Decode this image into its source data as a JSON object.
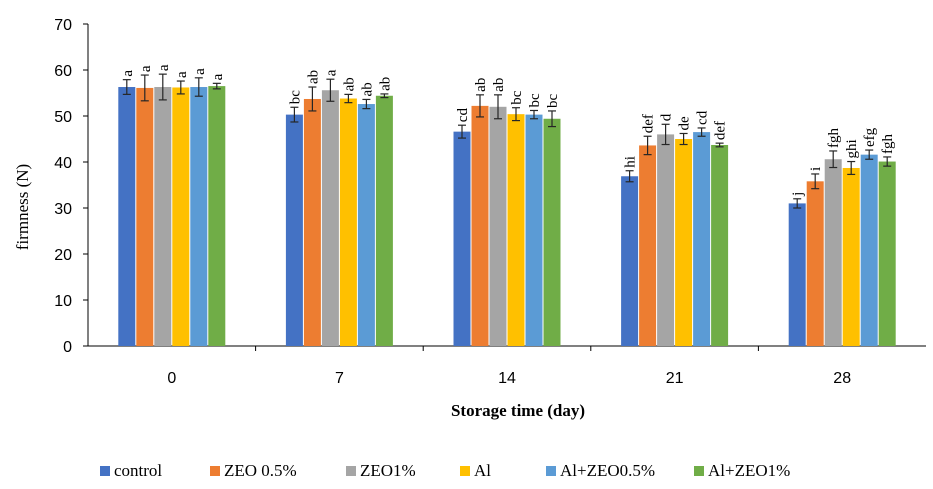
{
  "chart_data": {
    "type": "bar",
    "title": "",
    "xlabel": "Storage time (day)",
    "ylabel": "firmness (N)",
    "ylim": [
      0,
      70
    ],
    "yticks": [
      0,
      10,
      20,
      30,
      40,
      50,
      60,
      70
    ],
    "grid": false,
    "legend_position": "bottom",
    "categories": [
      "0",
      "7",
      "14",
      "21",
      "28"
    ],
    "series": [
      {
        "name": "control",
        "color": "#4472C4",
        "values": [
          56.3,
          50.3,
          46.6,
          36.9,
          31.0
        ],
        "errors": [
          1.6,
          1.6,
          1.4,
          1.2,
          1.0
        ],
        "labels": [
          "a",
          "bc",
          "cd",
          "hi",
          "j"
        ]
      },
      {
        "name": "ZEO 0.5%",
        "color": "#ED7D31",
        "values": [
          56.1,
          53.7,
          52.2,
          43.6,
          35.8
        ],
        "errors": [
          2.8,
          2.6,
          2.4,
          2.0,
          1.6
        ],
        "labels": [
          "a",
          "ab",
          "ab",
          "def",
          "i"
        ]
      },
      {
        "name": "ZEO1%",
        "color": "#A5A5A5",
        "values": [
          56.3,
          55.6,
          52.0,
          46.0,
          40.6
        ],
        "errors": [
          2.8,
          2.4,
          2.6,
          2.2,
          1.8
        ],
        "labels": [
          "a",
          "a",
          "ab",
          "d",
          "fgh"
        ]
      },
      {
        "name": "Al",
        "color": "#FFC000",
        "values": [
          56.2,
          53.8,
          50.4,
          45.0,
          38.7
        ],
        "errors": [
          1.4,
          0.9,
          1.4,
          1.2,
          1.4
        ],
        "labels": [
          "a",
          "ab",
          "bc",
          "de",
          "ghi"
        ]
      },
      {
        "name": "Al+ZEO0.5%",
        "color": "#5B9BD5",
        "values": [
          56.3,
          52.6,
          50.3,
          46.5,
          41.6
        ],
        "errors": [
          2.0,
          1.0,
          0.9,
          0.9,
          1.0
        ],
        "labels": [
          "a",
          "ab",
          "bc",
          "cd",
          "efg"
        ]
      },
      {
        "name": "Al+ZEO1%",
        "color": "#70AD47",
        "values": [
          56.5,
          54.4,
          49.4,
          43.7,
          40.1
        ],
        "errors": [
          0.6,
          0.4,
          1.7,
          0.4,
          1.0
        ],
        "labels": [
          "a",
          "ab",
          "bc",
          "def",
          "fgh"
        ]
      }
    ]
  }
}
